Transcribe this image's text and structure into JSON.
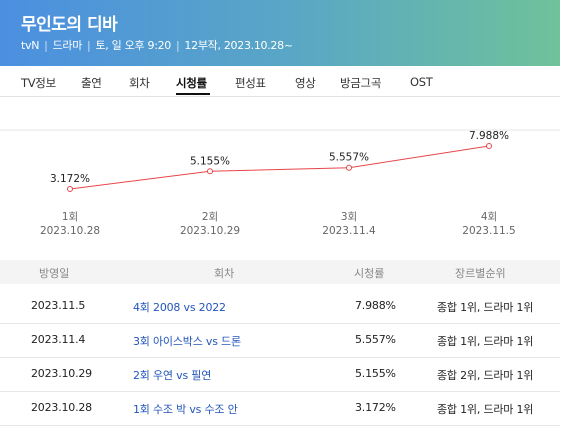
{
  "header": {
    "title": "무인도의 디바",
    "channel": "tvN",
    "genre": "드라마",
    "schedule": "토, 일 오후 9:20",
    "episodes_info": "12부작, 2023.10.28~"
  },
  "tabs": [
    "TV정보",
    "출연",
    "회차",
    "시청률",
    "편성표",
    "영상",
    "방금그곡",
    "OST"
  ],
  "active_tab": "시청률",
  "chart_data": {
    "type": "line",
    "x": [
      "1회",
      "2회",
      "3회",
      "4회"
    ],
    "x_dates": [
      "2023.10.28",
      "2023.10.29",
      "2023.11.4",
      "2023.11.5"
    ],
    "series": [
      {
        "values": [
          3.172,
          5.155,
          5.557,
          7.988
        ],
        "labels": [
          "3.172%",
          "5.155%",
          "5.557%",
          "7.988%"
        ]
      }
    ],
    "line_color": "#e8454a"
  },
  "table": {
    "headers": [
      "방영일",
      "회차",
      "시청률",
      "장르별순위"
    ],
    "rows": [
      {
        "date": "2023.11.5",
        "episode": "4회 2008 vs 2022",
        "rating": "7.988%",
        "rank": "종합 1위, 드라마 1위"
      },
      {
        "date": "2023.11.4",
        "episode": "3회 아이스박스 vs 드론",
        "rating": "5.557%",
        "rank": "종합 1위, 드라마 1위"
      },
      {
        "date": "2023.10.29",
        "episode": "2회 우연 vs 필연",
        "rating": "5.155%",
        "rank": "종합 2위, 드라마 1위"
      },
      {
        "date": "2023.10.28",
        "episode": "1회 수조 박 vs 수조 안",
        "rating": "3.172%",
        "rank": "종합 1위, 드라마 1위"
      }
    ]
  }
}
